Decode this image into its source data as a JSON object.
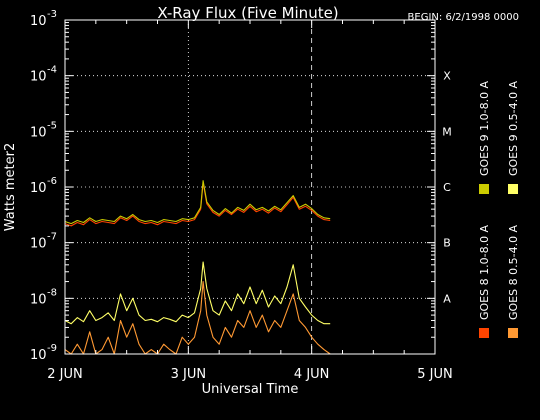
{
  "chart_data": {
    "type": "line",
    "title": "X-Ray Flux (Five Minute)",
    "begin": "BEGIN: 6/2/1998 0000",
    "xlabel": "Universal Time",
    "ylabel": "Watts meter2",
    "y_log_scale": true,
    "ylim": [
      1e-09,
      0.001
    ],
    "y_ticks": [
      {
        "base": "10",
        "exp": "-9"
      },
      {
        "base": "10",
        "exp": "-8"
      },
      {
        "base": "10",
        "exp": "-7"
      },
      {
        "base": "10",
        "exp": "-6"
      },
      {
        "base": "10",
        "exp": "-5"
      },
      {
        "base": "10",
        "exp": "-4"
      },
      {
        "base": "10",
        "exp": "-3"
      }
    ],
    "x_ticks": [
      "2 JUN",
      "3 JUN",
      "4 JUN",
      "5 JUN"
    ],
    "xlim_days": [
      0,
      3
    ],
    "flare_classes": [
      {
        "label": "A",
        "flux": 1e-08
      },
      {
        "label": "B",
        "flux": 1e-07
      },
      {
        "label": "C",
        "flux": 1e-06
      },
      {
        "label": "M",
        "flux": 1e-05
      },
      {
        "label": "X",
        "flux": 0.0001
      }
    ],
    "grid": {
      "horizontal": "dotted at each decade",
      "vertical": "dotted at 3 JUN, dashed at 4 JUN"
    },
    "legend_placement": "right (rotated)",
    "series": [
      {
        "name": "GOES 8 1.0-8.0 A",
        "color": "#ff4400",
        "x": [
          0,
          0.05,
          0.1,
          0.15,
          0.2,
          0.25,
          0.3,
          0.35,
          0.4,
          0.45,
          0.5,
          0.55,
          0.6,
          0.65,
          0.7,
          0.75,
          0.8,
          0.85,
          0.9,
          0.95,
          1,
          1.05,
          1.1,
          1.12,
          1.15,
          1.2,
          1.25,
          1.3,
          1.35,
          1.4,
          1.45,
          1.5,
          1.55,
          1.6,
          1.65,
          1.7,
          1.75,
          1.8,
          1.85,
          1.9,
          1.95,
          2,
          2.05,
          2.1,
          2.15
        ],
        "y": [
          2.2e-07,
          2e-07,
          2.3e-07,
          2.1e-07,
          2.6e-07,
          2.2e-07,
          2.4e-07,
          2.3e-07,
          2.2e-07,
          2.8e-07,
          2.5e-07,
          3e-07,
          2.4e-07,
          2.2e-07,
          2.3e-07,
          2.1e-07,
          2.4e-07,
          2.3e-07,
          2.2e-07,
          2.5e-07,
          2.4e-07,
          2.6e-07,
          4e-07,
          1.2e-06,
          5e-07,
          3.5e-07,
          3e-07,
          3.8e-07,
          3.2e-07,
          4e-07,
          3.5e-07,
          4.5e-07,
          3.6e-07,
          4e-07,
          3.4e-07,
          4.2e-07,
          3.6e-07,
          4.8e-07,
          6.5e-07,
          4e-07,
          4.5e-07,
          3.8e-07,
          3e-07,
          2.6e-07,
          2.5e-07
        ]
      },
      {
        "name": "GOES 8 0.5-4.0 A",
        "color": "#ff9933",
        "x": [
          0,
          0.05,
          0.1,
          0.15,
          0.2,
          0.25,
          0.3,
          0.35,
          0.4,
          0.45,
          0.5,
          0.55,
          0.6,
          0.65,
          0.7,
          0.75,
          0.8,
          0.85,
          0.9,
          0.95,
          1,
          1.05,
          1.1,
          1.12,
          1.15,
          1.2,
          1.25,
          1.3,
          1.35,
          1.4,
          1.45,
          1.5,
          1.55,
          1.6,
          1.65,
          1.7,
          1.75,
          1.8,
          1.85,
          1.9,
          1.95,
          2,
          2.05,
          2.1,
          2.15
        ],
        "y": [
          1.2e-09,
          1e-09,
          1.5e-09,
          1e-09,
          2.5e-09,
          1e-09,
          1.2e-09,
          2e-09,
          1e-09,
          4e-09,
          2e-09,
          3.5e-09,
          1.5e-09,
          1e-09,
          1.2e-09,
          1e-09,
          1.5e-09,
          1.2e-09,
          1e-09,
          2e-09,
          1.5e-09,
          2e-09,
          6e-09,
          2e-08,
          5e-09,
          2e-09,
          1.5e-09,
          3e-09,
          2e-09,
          4e-09,
          3e-09,
          6e-09,
          3e-09,
          5e-09,
          2.5e-09,
          4e-09,
          3e-09,
          6e-09,
          1.2e-08,
          4e-09,
          3e-09,
          2e-09,
          1.5e-09,
          1.2e-09,
          1e-09
        ]
      },
      {
        "name": "GOES 9 1.0-8.0 A",
        "color": "#cccc00",
        "x": [
          0,
          0.05,
          0.1,
          0.15,
          0.2,
          0.25,
          0.3,
          0.35,
          0.4,
          0.45,
          0.5,
          0.55,
          0.6,
          0.65,
          0.7,
          0.75,
          0.8,
          0.85,
          0.9,
          0.95,
          1,
          1.05,
          1.1,
          1.12,
          1.15,
          1.2,
          1.25,
          1.3,
          1.35,
          1.4,
          1.45,
          1.5,
          1.55,
          1.6,
          1.65,
          1.7,
          1.75,
          1.8,
          1.85,
          1.9,
          1.95,
          2,
          2.05,
          2.1,
          2.15
        ],
        "y": [
          2.4e-07,
          2.2e-07,
          2.5e-07,
          2.3e-07,
          2.8e-07,
          2.4e-07,
          2.6e-07,
          2.5e-07,
          2.4e-07,
          3e-07,
          2.7e-07,
          3.2e-07,
          2.6e-07,
          2.4e-07,
          2.5e-07,
          2.3e-07,
          2.6e-07,
          2.5e-07,
          2.4e-07,
          2.7e-07,
          2.6e-07,
          2.8e-07,
          4.3e-07,
          1.3e-06,
          5.4e-07,
          3.8e-07,
          3.2e-07,
          4.1e-07,
          3.4e-07,
          4.3e-07,
          3.8e-07,
          4.9e-07,
          3.9e-07,
          4.3e-07,
          3.7e-07,
          4.5e-07,
          3.9e-07,
          5.2e-07,
          7e-07,
          4.3e-07,
          4.9e-07,
          4.1e-07,
          3.2e-07,
          2.8e-07,
          2.7e-07
        ]
      },
      {
        "name": "GOES 9 0.5-4.0 A",
        "color": "#ffff66",
        "x": [
          0,
          0.05,
          0.1,
          0.15,
          0.2,
          0.25,
          0.3,
          0.35,
          0.4,
          0.45,
          0.5,
          0.55,
          0.6,
          0.65,
          0.7,
          0.75,
          0.8,
          0.85,
          0.9,
          0.95,
          1,
          1.05,
          1.1,
          1.12,
          1.15,
          1.2,
          1.25,
          1.3,
          1.35,
          1.4,
          1.45,
          1.5,
          1.55,
          1.6,
          1.65,
          1.7,
          1.75,
          1.8,
          1.85,
          1.9,
          1.95,
          2,
          2.05,
          2.1,
          2.15
        ],
        "y": [
          4e-09,
          3.5e-09,
          4.5e-09,
          3.8e-09,
          6e-09,
          4e-09,
          4.5e-09,
          5.5e-09,
          4e-09,
          1.2e-08,
          6e-09,
          1e-08,
          5e-09,
          4e-09,
          4.2e-09,
          3.8e-09,
          4.5e-09,
          4.2e-09,
          3.8e-09,
          5e-09,
          4.5e-09,
          5.5e-09,
          1.5e-08,
          4.5e-08,
          1.5e-08,
          6e-09,
          5e-09,
          9e-09,
          6e-09,
          1.2e-08,
          8e-09,
          1.6e-08,
          8e-09,
          1.4e-08,
          7e-09,
          1.1e-08,
          8e-09,
          1.6e-08,
          4e-08,
          1e-08,
          7e-09,
          5e-09,
          4e-09,
          3.5e-09,
          3.5e-09
        ]
      }
    ]
  }
}
